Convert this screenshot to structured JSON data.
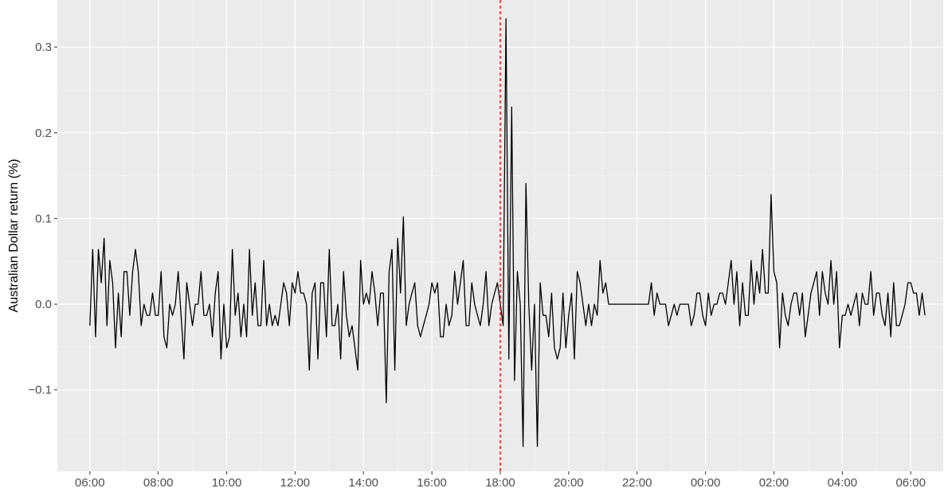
{
  "chart_data": {
    "type": "line",
    "title": "",
    "xlabel": "",
    "ylabel": "Australian Dollar return (%)",
    "x_tick_labels": [
      "06:00",
      "08:00",
      "10:00",
      "12:00",
      "14:00",
      "16:00",
      "18:00",
      "20:00",
      "22:00",
      "00:00",
      "02:00",
      "04:00",
      "06:00"
    ],
    "x_tick_hours": [
      0,
      2,
      4,
      6,
      8,
      10,
      12,
      14,
      16,
      18,
      20,
      22,
      24
    ],
    "y_ticks": [
      -0.1,
      0.0,
      0.1,
      0.2,
      0.3
    ],
    "y_tick_labels": [
      "−0.1",
      "0.0",
      "0.1",
      "0.2",
      "0.3"
    ],
    "xlim_hours": [
      -0.95,
      24.95
    ],
    "ylim": [
      -0.195,
      0.355
    ],
    "grid": true,
    "vline": {
      "x_hour": 12,
      "label": "18:00",
      "color": "#ff0000",
      "style": "dashed"
    },
    "series": [
      {
        "line_color": "#000000",
        "x_step_minutes": 5,
        "x_start": "06:00",
        "values": [
          -0.025,
          0.064,
          -0.038,
          0.064,
          0.025,
          0.077,
          -0.025,
          0.051,
          0.025,
          -0.051,
          0.013,
          -0.038,
          0.038,
          0.038,
          -0.013,
          0.038,
          0.064,
          0.038,
          -0.025,
          0.0,
          -0.013,
          -0.013,
          0.013,
          -0.013,
          -0.013,
          0.038,
          -0.038,
          -0.051,
          0.0,
          -0.013,
          0.0,
          0.038,
          -0.013,
          -0.064,
          0.025,
          0.0,
          -0.025,
          0.0,
          0.0,
          0.038,
          -0.013,
          -0.013,
          0.0,
          -0.038,
          0.013,
          0.038,
          -0.064,
          0.0,
          -0.051,
          -0.038,
          0.064,
          -0.013,
          0.013,
          -0.038,
          0.0,
          -0.038,
          0.064,
          -0.013,
          0.025,
          -0.025,
          -0.025,
          0.051,
          -0.025,
          0.0,
          -0.025,
          -0.013,
          -0.025,
          0.0,
          0.025,
          0.013,
          -0.025,
          0.025,
          0.013,
          0.038,
          0.013,
          0.013,
          0.0,
          -0.077,
          0.013,
          0.025,
          -0.064,
          0.025,
          0.025,
          -0.038,
          0.064,
          -0.025,
          -0.025,
          0.0,
          -0.064,
          0.038,
          -0.013,
          -0.038,
          -0.025,
          -0.051,
          -0.077,
          0.051,
          0.0,
          0.013,
          0.0,
          0.038,
          0.013,
          -0.025,
          0.013,
          0.013,
          -0.115,
          0.038,
          0.064,
          -0.077,
          0.077,
          0.013,
          0.102,
          -0.025,
          0.0,
          0.013,
          0.025,
          -0.025,
          -0.038,
          -0.025,
          -0.013,
          0.0,
          0.025,
          0.013,
          0.025,
          -0.038,
          -0.038,
          0.0,
          -0.025,
          -0.013,
          0.038,
          0.0,
          0.025,
          0.051,
          -0.025,
          -0.025,
          0.025,
          0.0,
          -0.013,
          -0.025,
          0.0,
          0.038,
          -0.025,
          0.0,
          0.013,
          0.025,
          0.0,
          -0.025,
          0.333,
          -0.064,
          0.23,
          -0.089,
          0.038,
          0.0,
          -0.166,
          0.141,
          0.0,
          -0.077,
          0.0,
          -0.166,
          0.025,
          -0.013,
          -0.013,
          -0.038,
          0.013,
          -0.051,
          -0.064,
          -0.051,
          0.013,
          -0.051,
          -0.013,
          0.013,
          -0.064,
          0.038,
          0.025,
          0.0,
          -0.025,
          0.0,
          -0.025,
          0.0,
          -0.013,
          0.051,
          0.013,
          0.025,
          0.0,
          0.0,
          0.0,
          0.0,
          0.0,
          0.0,
          0.0,
          0.0,
          0.0,
          0.0,
          0.0,
          0.0,
          0.0,
          0.0,
          0.0,
          0.025,
          -0.013,
          0.013,
          0.0,
          0.0,
          0.0,
          -0.025,
          -0.013,
          0.0,
          -0.013,
          0.0,
          0.0,
          0.0,
          0.0,
          -0.025,
          -0.013,
          0.013,
          0.013,
          -0.013,
          -0.025,
          0.013,
          -0.013,
          0.0,
          0.0,
          0.013,
          0.013,
          0.0,
          0.025,
          0.051,
          0.0,
          0.038,
          -0.025,
          0.025,
          -0.013,
          -0.013,
          0.051,
          0.0,
          0.038,
          0.013,
          0.064,
          0.013,
          0.013,
          0.128,
          0.038,
          0.025,
          -0.051,
          0.013,
          -0.013,
          -0.025,
          0.0,
          0.013,
          0.013,
          -0.013,
          0.013,
          -0.038,
          -0.013,
          0.013,
          0.025,
          0.038,
          -0.013,
          0.038,
          0.013,
          0.0,
          0.051,
          0.0,
          0.038,
          -0.051,
          -0.013,
          -0.013,
          0.0,
          -0.013,
          0.0,
          0.013,
          -0.025,
          0.013,
          0.0,
          0.0,
          0.038,
          -0.013,
          0.013,
          0.013,
          -0.013,
          -0.025,
          0.013,
          -0.038,
          0.025,
          -0.025,
          -0.025,
          -0.013,
          0.0,
          0.025,
          0.025,
          0.013,
          0.013,
          -0.013,
          0.013,
          -0.013
        ]
      }
    ]
  }
}
